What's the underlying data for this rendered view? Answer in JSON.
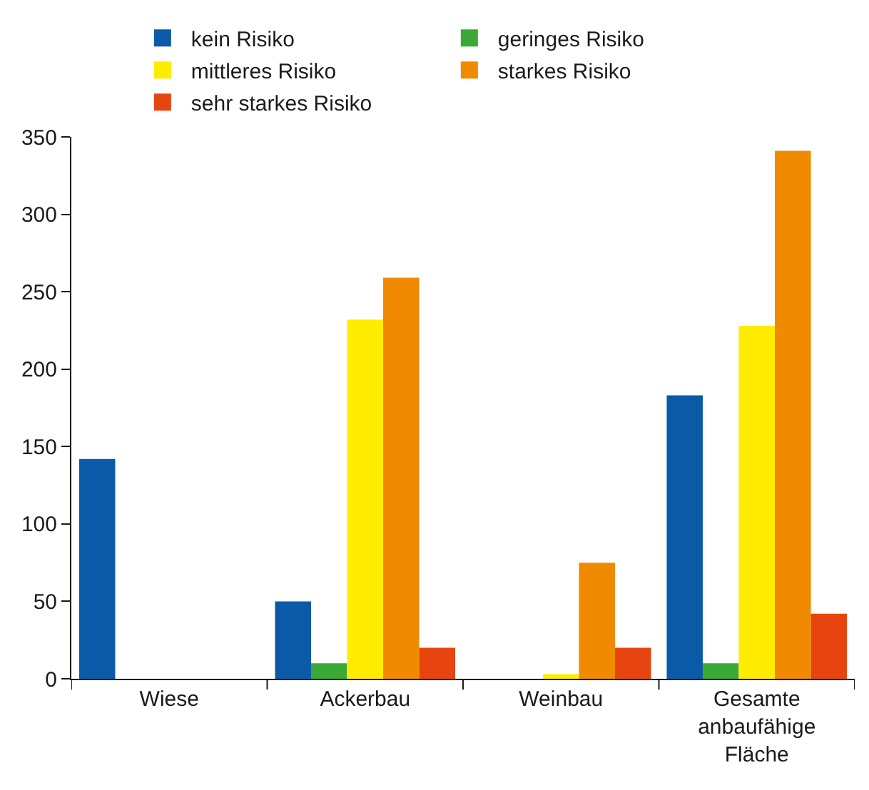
{
  "chart_data": {
    "type": "bar",
    "categories": [
      "Wiese",
      "Ackerbau",
      "Weinbau",
      "Gesamte\nanbaufähige\nFläche"
    ],
    "series": [
      {
        "name": "kein Risiko",
        "color": "#0a5aa8",
        "values": [
          142,
          50,
          0,
          183
        ]
      },
      {
        "name": "geringes Risiko",
        "color": "#3aa935",
        "values": [
          0,
          10,
          0,
          10
        ]
      },
      {
        "name": "mittleres Risiko",
        "color": "#ffec00",
        "values": [
          0,
          232,
          3,
          228
        ]
      },
      {
        "name": "starkes Risiko",
        "color": "#f08a00",
        "values": [
          0,
          259,
          75,
          341
        ]
      },
      {
        "name": "sehr starkes Risiko",
        "color": "#e6450f",
        "values": [
          0,
          20,
          20,
          42
        ]
      }
    ],
    "ylim": [
      0,
      350
    ],
    "yticks": [
      0,
      50,
      100,
      150,
      200,
      250,
      300,
      350
    ],
    "grid": false,
    "legend": "top"
  }
}
